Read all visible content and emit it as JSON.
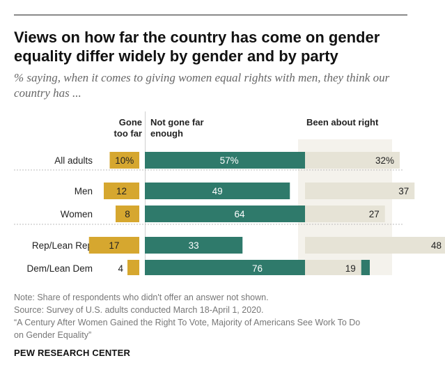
{
  "title": "Views on how far the country has come on gender equality differ widely by gender and by party",
  "subtitle": "% saying, when it comes to giving women equal rights with men, they think our country has ...",
  "chart_data": {
    "type": "bar",
    "orientation": "horizontal",
    "stacked_panels": true,
    "categories": [
      "All adults",
      "Men",
      "Women",
      "Rep/Lean Rep",
      "Dem/Lean Dem"
    ],
    "series": [
      {
        "name": "Gone too far",
        "header_lines": [
          "Gone",
          "too far"
        ],
        "values": [
          10,
          12,
          8,
          17,
          4
        ],
        "labels": [
          "10%",
          "12",
          "8",
          "17",
          "4"
        ],
        "color": "#d6a72f"
      },
      {
        "name": "Not gone far enough",
        "header_lines": [
          "Not gone far",
          "enough"
        ],
        "values": [
          57,
          49,
          64,
          33,
          76
        ],
        "labels": [
          "57%",
          "49",
          "64",
          "33",
          "76"
        ],
        "color": "#2f7a6b"
      },
      {
        "name": "Been about right",
        "header_lines": [
          "Been about right"
        ],
        "values": [
          32,
          37,
          27,
          48,
          19
        ],
        "labels": [
          "32%",
          "37",
          "27",
          "48",
          "19"
        ],
        "color": "#e6e3d6"
      }
    ],
    "groups": [
      [
        0
      ],
      [
        1,
        2
      ],
      [
        3,
        4
      ]
    ],
    "grid": false,
    "legend": "none"
  },
  "footer": {
    "note": "Note: Share of respondents who didn't offer an answer not shown.",
    "source": "Source: Survey of U.S. adults conducted March 18-April 1, 2020.",
    "report_line1": "“A Century After Women Gained the Right To Vote, Majority of Americans See Work To Do",
    "report_line2": "on Gender Equality”"
  },
  "brand": "PEW RESEARCH CENTER"
}
